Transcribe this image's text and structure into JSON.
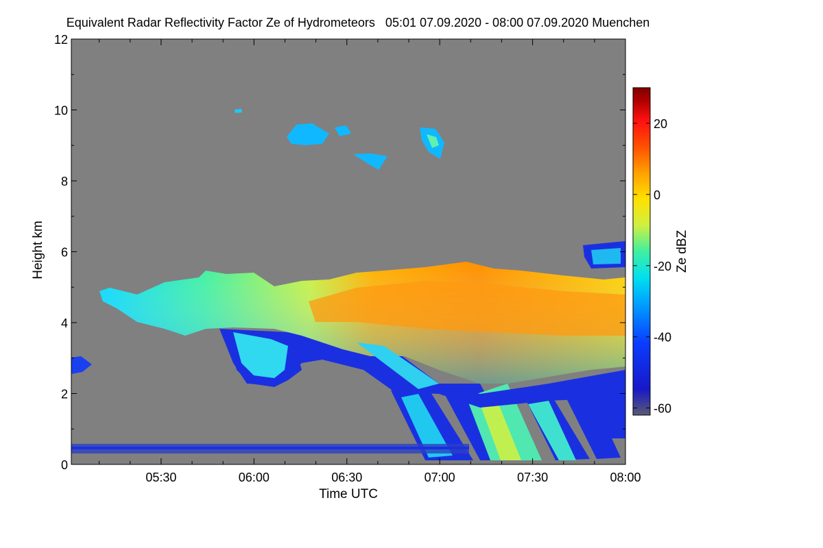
{
  "chart_data": {
    "type": "heatmap",
    "title": "Equivalent Radar Reflectivity Factor Ze of Hydrometeors   05:01 07.09.2020 - 08:00 07.09.2020 Muenchen",
    "xlabel": "Time UTC",
    "ylabel": "Height km",
    "colorbar_label": "Ze dBZ",
    "xlim": [
      "05:01",
      "08:00"
    ],
    "x_ticks": [
      "05:30",
      "06:00",
      "06:30",
      "07:00",
      "07:30",
      "08:00"
    ],
    "ylim": [
      0,
      12
    ],
    "y_ticks": [
      "0",
      "2",
      "4",
      "6",
      "8",
      "10",
      "12"
    ],
    "colorbar_range": [
      -62,
      30
    ],
    "colorbar_ticks": [
      "20",
      "0",
      "-20",
      "-40",
      "-60"
    ],
    "background_color": "#808080",
    "colormap": [
      "#5a5a73",
      "#1818c8",
      "#0a3cff",
      "#00a0ff",
      "#00e0f0",
      "#40f0a0",
      "#d0f040",
      "#ffe000",
      "#ffa000",
      "#ff5000",
      "#ff1010",
      "#b00000",
      "#800000"
    ],
    "features": [
      {
        "name": "main-stratiform-layer",
        "time_range": [
          "05:10",
          "08:00"
        ],
        "height_km": [
          2.5,
          5.6
        ],
        "max_ze_dbz": 10
      },
      {
        "name": "fall-streaks",
        "time_range": [
          "06:45",
          "08:00"
        ],
        "height_km": [
          0,
          4
        ],
        "ze_dbz": [
          -40,
          0
        ]
      },
      {
        "name": "upper-cirrus",
        "time_range": [
          "06:10",
          "07:05"
        ],
        "height_km": [
          8.3,
          9.5
        ],
        "ze_dbz": [
          -35,
          -15
        ]
      },
      {
        "name": "cloud-6km",
        "time_range": [
          "07:50",
          "08:00"
        ],
        "height_km": [
          5.5,
          6.2
        ],
        "ze_dbz": [
          -40,
          -25
        ]
      },
      {
        "name": "near-surface-clutter",
        "time_range": [
          "05:01",
          "08:00"
        ],
        "height_km": [
          0.3,
          0.5
        ],
        "ze_dbz": [
          -45,
          -35
        ]
      }
    ]
  }
}
